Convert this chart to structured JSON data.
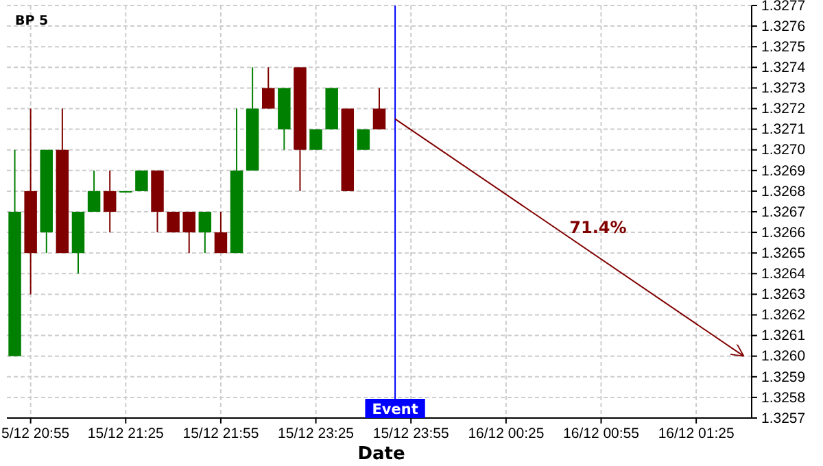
{
  "chart_data": {
    "type": "candlestick",
    "title": "BP 5",
    "xlabel": "Date",
    "categories": [
      null,
      "5/12 20:55",
      null,
      null,
      null,
      null,
      null,
      "15/12 21:25",
      null,
      null,
      null,
      null,
      null,
      "15/12 21:55",
      null,
      null,
      null,
      null,
      null,
      "15/12 23:25",
      null,
      null,
      null,
      null,
      null,
      "15/12 23:55",
      null,
      null,
      null,
      null,
      null,
      "16/12 00:25",
      null,
      null,
      null,
      null,
      null,
      "16/12 00:55",
      null,
      null,
      null,
      null,
      null,
      "16/12 01:25",
      null,
      null,
      null
    ],
    "ohlc": [
      [
        1.326,
        1.327,
        1.326,
        1.3267
      ],
      [
        1.3268,
        1.3272,
        1.3263,
        1.3265
      ],
      [
        1.3266,
        1.327,
        1.3265,
        1.327
      ],
      [
        1.327,
        1.3272,
        1.3265,
        1.3265
      ],
      [
        1.3265,
        1.3267,
        1.3264,
        1.3267
      ],
      [
        1.3267,
        1.3269,
        1.3267,
        1.3268
      ],
      [
        1.3268,
        1.3269,
        1.3266,
        1.3267
      ],
      [
        1.3268,
        1.3268,
        1.3268,
        1.3268
      ],
      [
        1.3268,
        1.3269,
        1.3268,
        1.3269
      ],
      [
        1.3269,
        1.3269,
        1.3266,
        1.3267
      ],
      [
        1.3267,
        1.3267,
        1.3266,
        1.3266
      ],
      [
        1.3267,
        1.3267,
        1.3265,
        1.3266
      ],
      [
        1.3266,
        1.3267,
        1.3265,
        1.3267
      ],
      [
        1.3266,
        1.3267,
        1.3265,
        1.3265
      ],
      [
        1.3265,
        1.3272,
        1.3265,
        1.3269
      ],
      [
        1.3269,
        1.3274,
        1.3269,
        1.3272
      ],
      [
        1.3273,
        1.3274,
        1.3272,
        1.3272
      ],
      [
        1.3271,
        1.3273,
        1.327,
        1.3273
      ],
      [
        1.3274,
        1.3274,
        1.3268,
        1.327
      ],
      [
        1.327,
        1.3271,
        1.327,
        1.3271
      ],
      [
        1.3271,
        1.3273,
        1.3271,
        1.3273
      ],
      [
        1.3272,
        1.3272,
        1.3268,
        1.3268
      ],
      [
        1.327,
        1.3271,
        1.327,
        1.3271
      ],
      [
        1.3272,
        1.3273,
        1.3271,
        1.3271
      ],
      null,
      null,
      null,
      null,
      null,
      null,
      null,
      null,
      null,
      null,
      null,
      null,
      null,
      null,
      null,
      null,
      null,
      null,
      null,
      null,
      null,
      null,
      null
    ],
    "colors": [
      "#008000",
      "#800000",
      "#008000",
      "#800000",
      "#008000",
      "#008000",
      "#800000",
      "#008000",
      "#008000",
      "#800000",
      "#800000",
      "#800000",
      "#008000",
      "#800000",
      "#008000",
      "#008000",
      "#800000",
      "#008000",
      "#800000",
      "#008000",
      "#008000",
      "#800000",
      "#008000",
      "#800000",
      null,
      null,
      null,
      null,
      null,
      null,
      null,
      null,
      null,
      null,
      null,
      null,
      null,
      null,
      null,
      null,
      null,
      null,
      null,
      null,
      null,
      null,
      null
    ],
    "series": [
      {
        "type": "line",
        "color": "#800000",
        "values": [
          null,
          null,
          null,
          null,
          null,
          null,
          null,
          null,
          null,
          null,
          null,
          null,
          null,
          null,
          null,
          null,
          null,
          null,
          null,
          null,
          null,
          null,
          null,
          null,
          1.32715,
          null,
          null,
          null,
          null,
          null,
          null,
          null,
          null,
          null,
          null,
          null,
          null,
          null,
          null,
          null,
          null,
          null,
          null,
          null,
          null,
          null,
          1.326
        ]
      }
    ],
    "annotations": [
      "Event",
      "71.4%"
    ],
    "ylim": [
      1.3257,
      1.3277
    ],
    "yticks": [
      1.3257,
      1.3258,
      1.3259,
      {
        "value": 1.326,
        "label": "1.3260"
      },
      1.3261,
      1.3262,
      1.3263,
      1.3264,
      1.3265,
      1.3266,
      1.3267,
      1.3268,
      1.3269,
      {
        "value": 1.327,
        "label": "1.3270"
      },
      1.3271,
      1.3272,
      1.3273,
      1.3274,
      1.3275,
      1.3276,
      1.3277
    ],
    "grid": true
  }
}
